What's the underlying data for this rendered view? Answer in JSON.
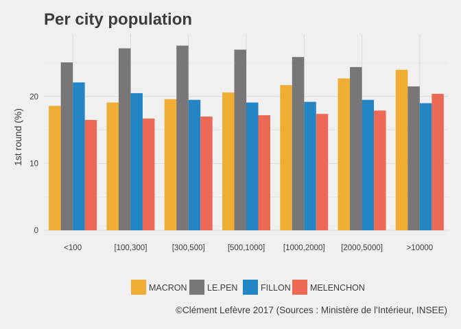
{
  "chart_data": {
    "type": "bar",
    "title": "Per city population",
    "xlabel": "",
    "ylabel": "1st round (%)",
    "caption": "©Clément Lefèvre 2017 (Sources : Ministère de l'Intérieur, INSEE)",
    "categories": [
      "<100",
      "[100,300]",
      "[300,500]",
      "[500,1000]",
      "[1000,2000]",
      "[2000,5000]",
      ">10000"
    ],
    "y_ticks": [
      0,
      10,
      20
    ],
    "ylim": [
      0,
      29.3
    ],
    "grid": true,
    "legend_position": "bottom",
    "series": [
      {
        "name": "MACRON",
        "color": "#f0ad33",
        "values": [
          18.6,
          19.1,
          19.6,
          20.6,
          21.7,
          22.7,
          24.0
        ]
      },
      {
        "name": "LE.PEN",
        "color": "#787676",
        "values": [
          25.1,
          27.2,
          27.6,
          27.0,
          25.9,
          24.4,
          21.5
        ]
      },
      {
        "name": "FILLON",
        "color": "#2385c4",
        "values": [
          22.1,
          20.5,
          19.5,
          19.1,
          19.2,
          19.5,
          19.0
        ]
      },
      {
        "name": "MELENCHON",
        "color": "#ec6a55",
        "values": [
          16.5,
          16.7,
          17.0,
          17.2,
          17.4,
          17.9,
          20.4
        ]
      }
    ]
  }
}
